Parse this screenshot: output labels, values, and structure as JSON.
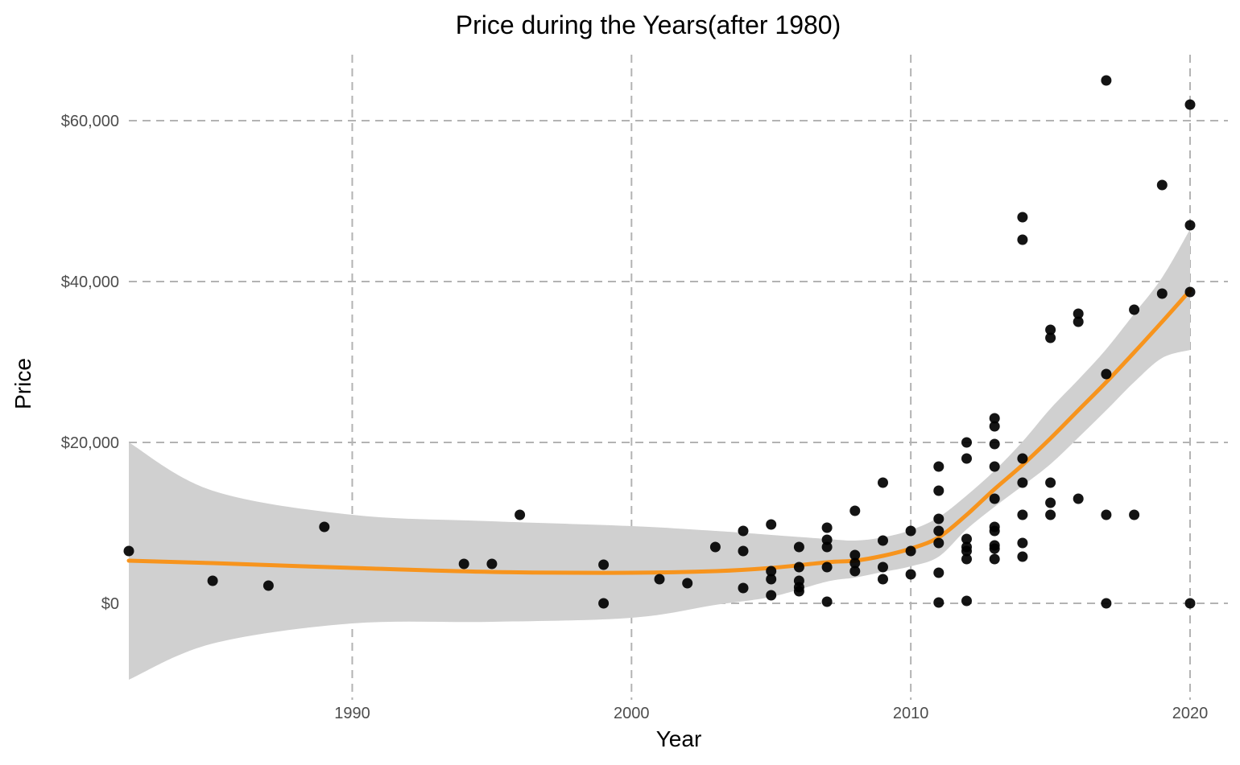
{
  "chart_data": {
    "type": "scatter",
    "title": "Price during the Years(after 1980)",
    "xlabel": "Year",
    "ylabel": "Price",
    "xlim": [
      1982,
      2021.5
    ],
    "ylim": [
      -9500,
      69000
    ],
    "x_ticks": [
      1990,
      2000,
      2010,
      2020
    ],
    "y_ticks": [
      0,
      20000,
      40000,
      60000
    ],
    "x_tick_labels": [
      "1990",
      "2000",
      "2010",
      "2020"
    ],
    "y_tick_labels": [
      "$0",
      "$20,000",
      "$40,000",
      "$60,000"
    ],
    "grid": true,
    "legend": "none",
    "colors": {
      "points": "#000000",
      "smooth_line": "#f7941d",
      "confidence_band": "#d0d0d0",
      "grid": "#b3b3b3"
    },
    "points": [
      [
        1982,
        6500
      ],
      [
        1985,
        2800
      ],
      [
        1987,
        2200
      ],
      [
        1989,
        9500
      ],
      [
        1994,
        4900
      ],
      [
        1995,
        4900
      ],
      [
        1996,
        11000
      ],
      [
        1999,
        4800
      ],
      [
        1999,
        0
      ],
      [
        2001,
        3000
      ],
      [
        2002,
        2500
      ],
      [
        2003,
        7000
      ],
      [
        2004,
        9000
      ],
      [
        2004,
        6500
      ],
      [
        2004,
        1900
      ],
      [
        2005,
        9800
      ],
      [
        2005,
        4000
      ],
      [
        2005,
        3000
      ],
      [
        2005,
        1000
      ],
      [
        2006,
        7000
      ],
      [
        2006,
        4500
      ],
      [
        2006,
        2800
      ],
      [
        2006,
        2000
      ],
      [
        2006,
        1500
      ],
      [
        2007,
        9400
      ],
      [
        2007,
        7900
      ],
      [
        2007,
        7000
      ],
      [
        2007,
        4500
      ],
      [
        2007,
        200
      ],
      [
        2008,
        11500
      ],
      [
        2008,
        6000
      ],
      [
        2008,
        5000
      ],
      [
        2008,
        4000
      ],
      [
        2009,
        15000
      ],
      [
        2009,
        7800
      ],
      [
        2009,
        4500
      ],
      [
        2009,
        3000
      ],
      [
        2010,
        9000
      ],
      [
        2010,
        6500
      ],
      [
        2010,
        3600
      ],
      [
        2011,
        17000
      ],
      [
        2011,
        14000
      ],
      [
        2011,
        10500
      ],
      [
        2011,
        9000
      ],
      [
        2011,
        7500
      ],
      [
        2011,
        3800
      ],
      [
        2011,
        100
      ],
      [
        2012,
        20000
      ],
      [
        2012,
        18000
      ],
      [
        2012,
        8000
      ],
      [
        2012,
        7000
      ],
      [
        2012,
        6500
      ],
      [
        2012,
        5500
      ],
      [
        2012,
        300
      ],
      [
        2013,
        23000
      ],
      [
        2013,
        22000
      ],
      [
        2013,
        19800
      ],
      [
        2013,
        17000
      ],
      [
        2013,
        13000
      ],
      [
        2013,
        9500
      ],
      [
        2013,
        9000
      ],
      [
        2013,
        7200
      ],
      [
        2013,
        6800
      ],
      [
        2013,
        5500
      ],
      [
        2014,
        48000
      ],
      [
        2014,
        45200
      ],
      [
        2014,
        18000
      ],
      [
        2014,
        15000
      ],
      [
        2014,
        11000
      ],
      [
        2014,
        7500
      ],
      [
        2014,
        5800
      ],
      [
        2015,
        34000
      ],
      [
        2015,
        33000
      ],
      [
        2015,
        15000
      ],
      [
        2015,
        12500
      ],
      [
        2015,
        11000
      ],
      [
        2016,
        36000
      ],
      [
        2016,
        35000
      ],
      [
        2016,
        13000
      ],
      [
        2017,
        65000
      ],
      [
        2017,
        28500
      ],
      [
        2017,
        11000
      ],
      [
        2017,
        0
      ],
      [
        2018,
        36500
      ],
      [
        2018,
        11000
      ],
      [
        2019,
        52000
      ],
      [
        2019,
        38500
      ],
      [
        2020,
        62000
      ],
      [
        2020,
        47000
      ],
      [
        2020,
        38700
      ],
      [
        2020,
        0
      ]
    ],
    "smooth": {
      "x": [
        1982,
        1985,
        1990,
        1995,
        2000,
        2003,
        2005,
        2007,
        2008,
        2009,
        2010,
        2011,
        2012,
        2013,
        2014,
        2015,
        2016,
        2017,
        2018,
        2019,
        2020
      ],
      "y": [
        5300,
        5000,
        4400,
        3900,
        3800,
        4000,
        4400,
        5100,
        5300,
        5900,
        6800,
        8200,
        11000,
        14200,
        17200,
        20500,
        24000,
        27500,
        31200,
        35000,
        38900
      ],
      "lower": [
        -9500,
        -5000,
        -2500,
        -2300,
        -1800,
        -200,
        800,
        2700,
        3200,
        3900,
        4600,
        5800,
        9200,
        12000,
        14600,
        17300,
        20600,
        24000,
        27500,
        30500,
        31500
      ],
      "upper": [
        20000,
        14000,
        11000,
        10200,
        9600,
        9000,
        8500,
        8000,
        7800,
        8200,
        9100,
        10700,
        13400,
        16500,
        20100,
        24200,
        27800,
        31600,
        36000,
        40500,
        46500
      ]
    }
  }
}
